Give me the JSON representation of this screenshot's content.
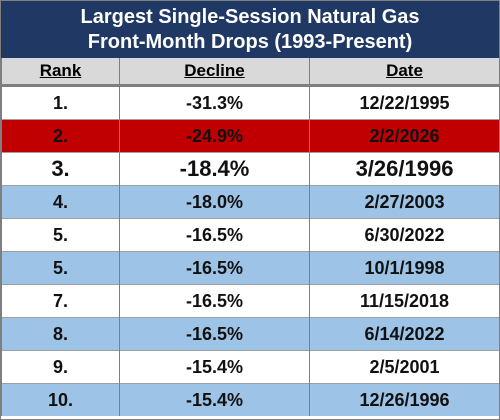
{
  "header": {
    "title": [
      "Largest Single-Session Natural Gas",
      "Front-Month Drops (1993-Present)"
    ]
  },
  "table": {
    "columns": [
      "Rank",
      "Decline",
      "Date"
    ],
    "rows": [
      [
        "1.",
        "-31.3%",
        "12/22/1995"
      ],
      [
        "2.",
        "-24.9%",
        "2/2/2026"
      ],
      [
        "3.",
        "-18.4%",
        "3/26/1996"
      ],
      [
        "4.",
        "-18.0%",
        "2/27/2003"
      ],
      [
        "5.",
        "-16.5%",
        "6/30/2022"
      ],
      [
        "5.",
        "-16.5%",
        "10/1/1998"
      ],
      [
        "7.",
        "-16.5%",
        "11/15/2018"
      ],
      [
        "8.",
        "-16.5%",
        "6/14/2022"
      ],
      [
        "9.",
        "-15.4%",
        "2/5/2001"
      ],
      [
        "10.",
        "-15.4%",
        "12/26/1996"
      ]
    ]
  }
}
